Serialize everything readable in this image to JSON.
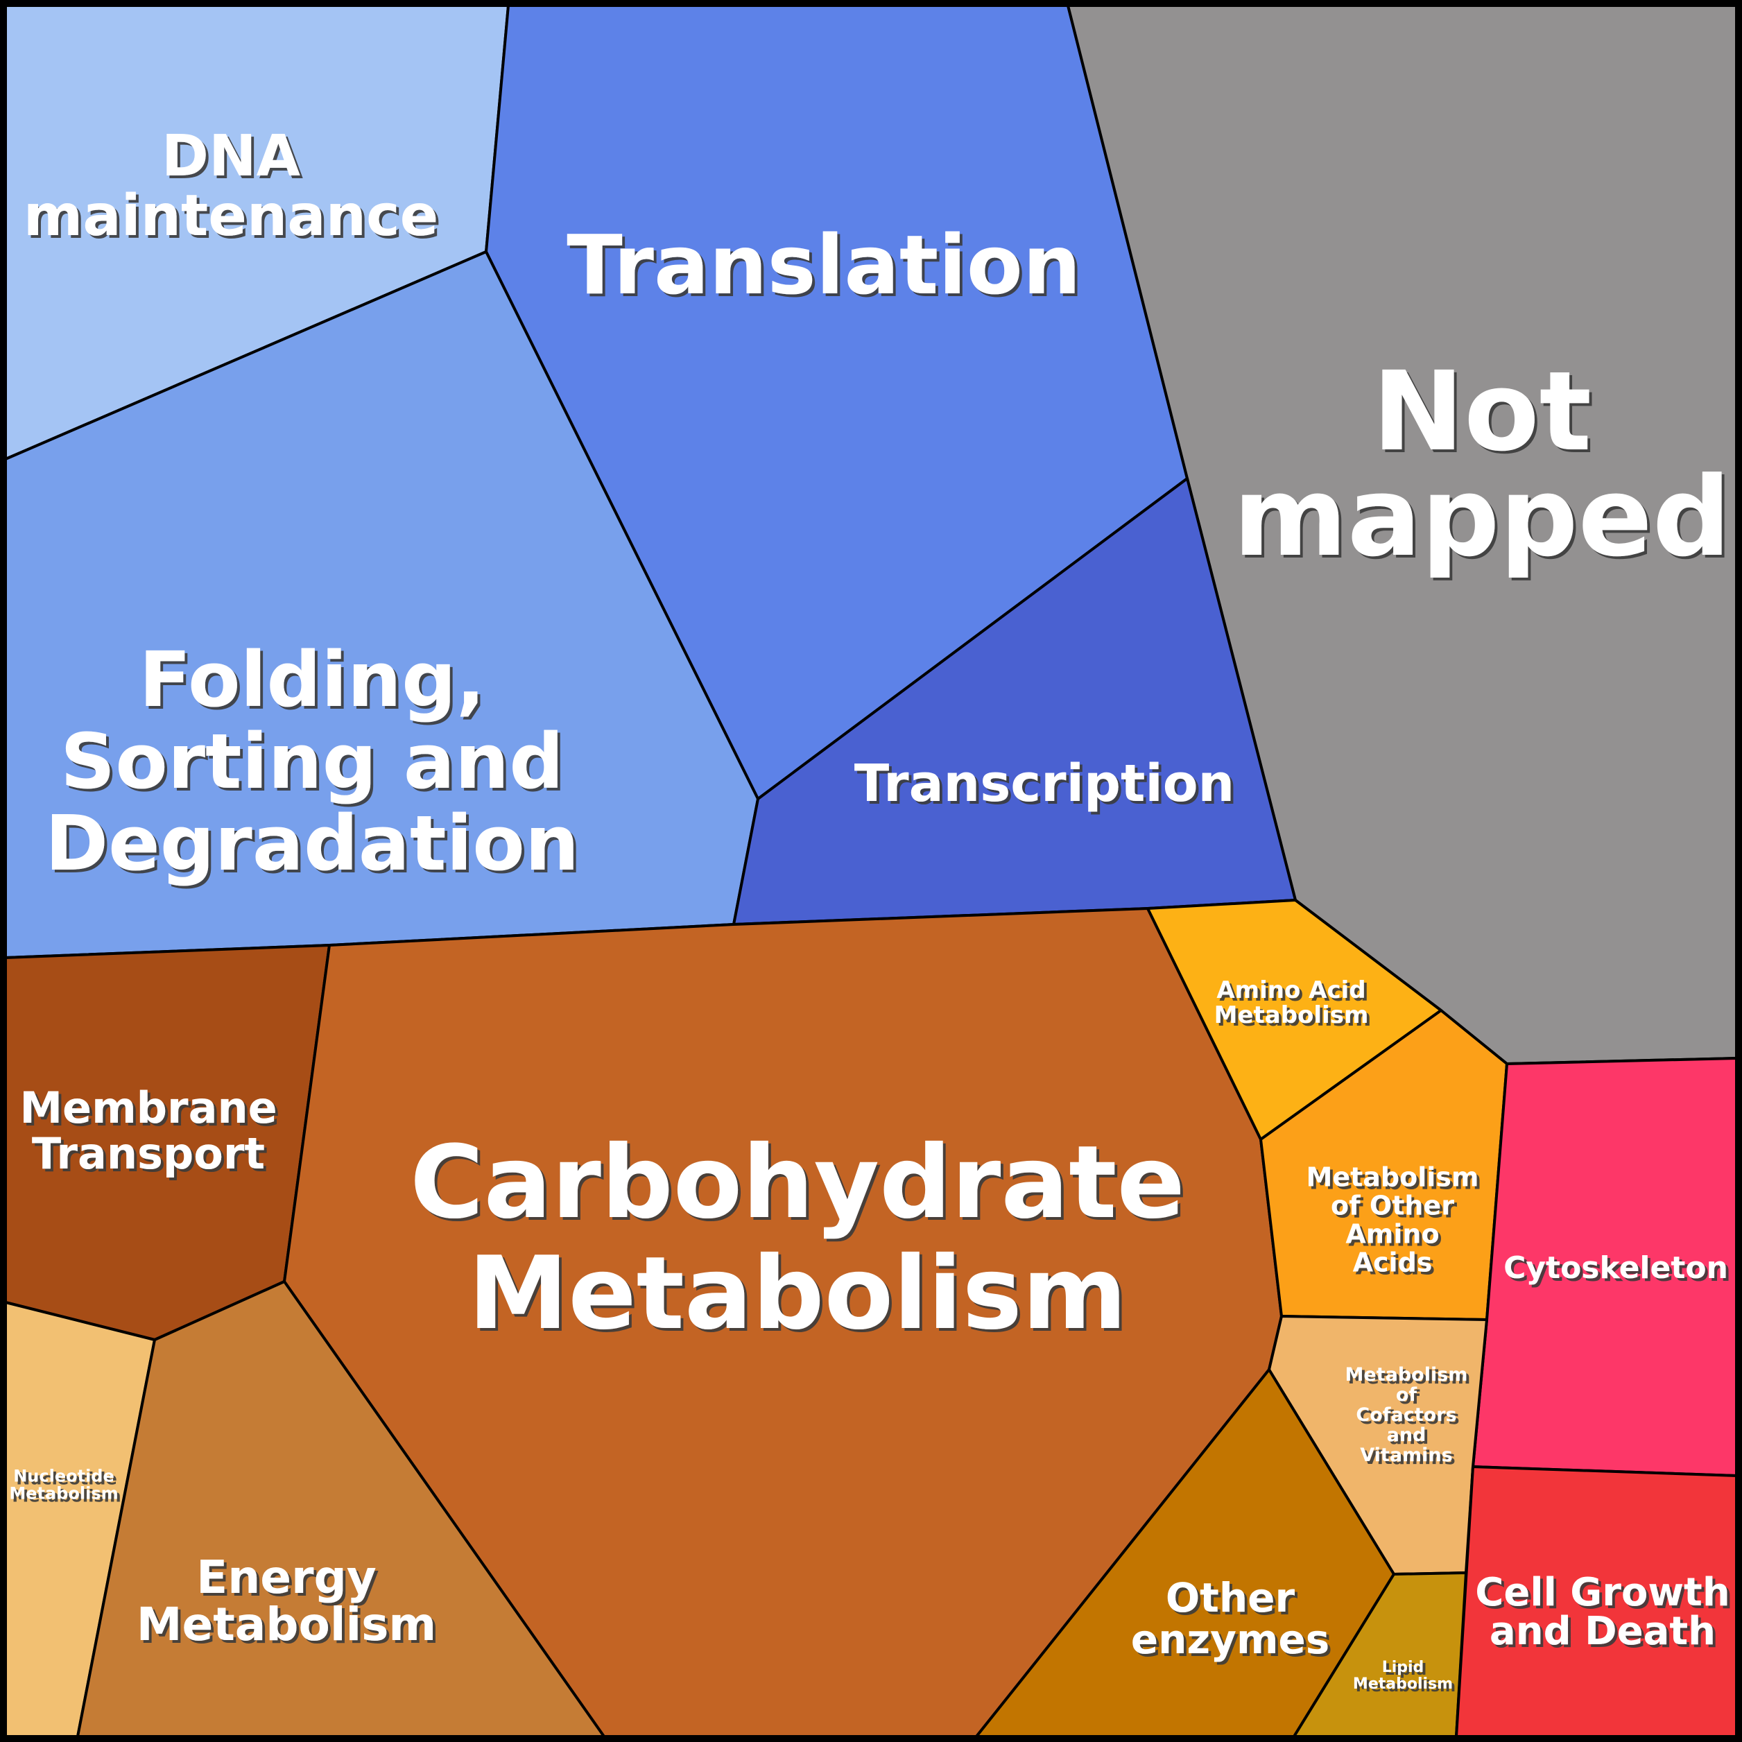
{
  "regions": [
    {
      "key": "dna",
      "label_lines": [
        "DNA",
        "maintenance"
      ],
      "color": "#a4c4f4"
    },
    {
      "key": "translation",
      "label_lines": [
        "Translation"
      ],
      "color": "#5d82e8"
    },
    {
      "key": "notmapped",
      "label_lines": [
        "Not",
        "mapped"
      ],
      "color": "#939191"
    },
    {
      "key": "folding",
      "label_lines": [
        "Folding,",
        "Sorting and",
        "Degradation"
      ],
      "color": "#78a0ec"
    },
    {
      "key": "transcription",
      "label_lines": [
        "Transcription"
      ],
      "color": "#4a61d1"
    },
    {
      "key": "membrane",
      "label_lines": [
        "Membrane",
        "Transport"
      ],
      "color": "#a74d16"
    },
    {
      "key": "carbohydrate",
      "label_lines": [
        "Carbohydrate",
        "Metabolism"
      ],
      "color": "#c36424"
    },
    {
      "key": "aminoacid",
      "label_lines": [
        "Amino Acid",
        "Metabolism"
      ],
      "color": "#fdb115"
    },
    {
      "key": "otheramino",
      "label_lines": [
        "Metabolism",
        "of Other",
        "Amino",
        "Acids"
      ],
      "color": "#fca018"
    },
    {
      "key": "cytoskeleton",
      "label_lines": [
        "Cytoskeleton"
      ],
      "color": "#fd3768"
    },
    {
      "key": "cofactors",
      "label_lines": [
        "Metabolism",
        "of",
        "Cofactors",
        "and",
        "Vitamins"
      ],
      "color": "#f0b56a"
    },
    {
      "key": "nucleotide",
      "label_lines": [
        "Nucleotide",
        "Metabolism"
      ],
      "color": "#f2c072"
    },
    {
      "key": "energy",
      "label_lines": [
        "Energy",
        "Metabolism"
      ],
      "color": "#c57c35"
    },
    {
      "key": "otherenzymes",
      "label_lines": [
        "Other",
        "enzymes"
      ],
      "color": "#c27500"
    },
    {
      "key": "lipid",
      "label_lines": [
        "Lipid",
        "Metabolism"
      ],
      "color": "#c7920d"
    },
    {
      "key": "cellgrowth",
      "label_lines": [
        "Cell Growth",
        "and Death"
      ],
      "color": "#f2353a"
    }
  ]
}
